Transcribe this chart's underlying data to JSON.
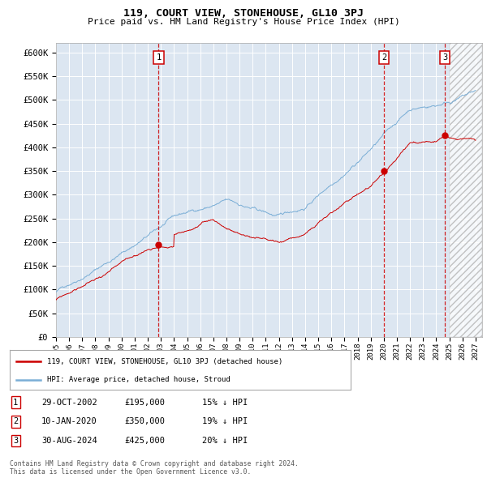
{
  "title": "119, COURT VIEW, STONEHOUSE, GL10 3PJ",
  "subtitle": "Price paid vs. HM Land Registry's House Price Index (HPI)",
  "xlim_start": 1995.0,
  "xlim_end": 2027.5,
  "ylim": [
    0,
    620000
  ],
  "yticks": [
    0,
    50000,
    100000,
    150000,
    200000,
    250000,
    300000,
    350000,
    400000,
    450000,
    500000,
    550000,
    600000
  ],
  "ytick_labels": [
    "£0",
    "£50K",
    "£100K",
    "£150K",
    "£200K",
    "£250K",
    "£300K",
    "£350K",
    "£400K",
    "£450K",
    "£500K",
    "£550K",
    "£600K"
  ],
  "xtick_labels": [
    "1995",
    "1996",
    "1997",
    "1998",
    "1999",
    "2000",
    "2001",
    "2002",
    "2003",
    "2004",
    "2005",
    "2006",
    "2007",
    "2008",
    "2009",
    "2010",
    "2011",
    "2012",
    "2013",
    "2014",
    "2015",
    "2016",
    "2017",
    "2018",
    "2019",
    "2020",
    "2021",
    "2022",
    "2023",
    "2024",
    "2025",
    "2026",
    "2027"
  ],
  "hpi_color": "#7aaed6",
  "price_color": "#cc0000",
  "vline_color": "#cc0000",
  "transactions": [
    {
      "date_val": 2002.83,
      "price": 195000,
      "label": "1"
    },
    {
      "date_val": 2020.03,
      "price": 350000,
      "label": "2"
    },
    {
      "date_val": 2024.67,
      "price": 425000,
      "label": "3"
    }
  ],
  "legend_property": "119, COURT VIEW, STONEHOUSE, GL10 3PJ (detached house)",
  "legend_hpi": "HPI: Average price, detached house, Stroud",
  "table_rows": [
    {
      "label": "1",
      "date": "29-OCT-2002",
      "price": "£195,000",
      "pct": "15% ↓ HPI"
    },
    {
      "label": "2",
      "date": "10-JAN-2020",
      "price": "£350,000",
      "pct": "19% ↓ HPI"
    },
    {
      "label": "3",
      "date": "30-AUG-2024",
      "price": "£425,000",
      "pct": "20% ↓ HPI"
    }
  ],
  "footnote": "Contains HM Land Registry data © Crown copyright and database right 2024.\nThis data is licensed under the Open Government Licence v3.0.",
  "hatch_region_start": 2025.0,
  "background_color": "#dce6f1"
}
